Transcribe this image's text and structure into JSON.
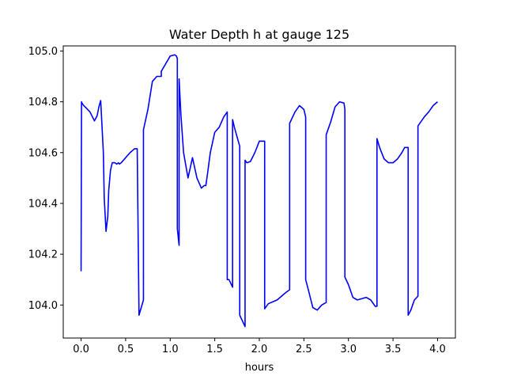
{
  "chart_data": {
    "type": "line",
    "title": "Water Depth h at gauge 125",
    "xlabel": "hours",
    "ylabel": "",
    "xlim": [
      -0.2,
      4.2
    ],
    "ylim": [
      103.87,
      105.02
    ],
    "xticks": [
      0.0,
      0.5,
      1.0,
      1.5,
      2.0,
      2.5,
      3.0,
      3.5,
      4.0
    ],
    "xtick_labels": [
      "0.0",
      "0.5",
      "1.0",
      "1.5",
      "2.0",
      "2.5",
      "3.0",
      "3.5",
      "4.0"
    ],
    "yticks": [
      104.0,
      104.2,
      104.4,
      104.6,
      104.8,
      105.0
    ],
    "ytick_labels": [
      "104.0",
      "104.2",
      "104.4",
      "104.6",
      "104.8",
      "105.0"
    ],
    "grid": false,
    "line_color": "#0000ff",
    "series": [
      {
        "x": [
          0.0,
          0.0,
          0.005,
          0.01,
          0.03,
          0.06,
          0.1,
          0.15,
          0.18,
          0.2,
          0.22,
          0.25,
          0.26,
          0.28,
          0.3,
          0.31,
          0.33,
          0.35,
          0.38,
          0.4,
          0.42,
          0.43,
          0.45,
          0.5,
          0.55,
          0.6,
          0.63,
          0.65,
          0.65,
          0.7,
          0.7,
          0.75,
          0.8,
          0.85,
          0.9,
          0.9,
          0.95,
          1.0,
          1.05,
          1.07,
          1.08,
          1.08,
          1.1,
          1.1,
          1.12,
          1.15,
          1.2,
          1.25,
          1.3,
          1.35,
          1.38,
          1.4,
          1.42,
          1.45,
          1.5,
          1.55,
          1.6,
          1.64,
          1.64,
          1.66,
          1.7,
          1.7,
          1.72,
          1.78,
          1.78,
          1.84,
          1.84,
          1.86,
          1.9,
          1.95,
          2.0,
          2.06,
          2.06,
          2.1,
          2.2,
          2.3,
          2.34,
          2.34,
          2.4,
          2.45,
          2.5,
          2.52,
          2.52,
          2.55,
          2.6,
          2.65,
          2.7,
          2.75,
          2.75,
          2.8,
          2.85,
          2.9,
          2.95,
          2.96,
          2.96,
          3.0,
          3.05,
          3.1,
          3.15,
          3.2,
          3.25,
          3.3,
          3.32,
          3.32,
          3.35,
          3.4,
          3.45,
          3.5,
          3.55,
          3.6,
          3.63,
          3.67,
          3.67,
          3.7,
          3.74,
          3.78,
          3.78,
          3.85,
          3.9,
          3.95,
          4.0
        ],
        "y": [
          104.2,
          104.135,
          104.8,
          104.795,
          104.785,
          104.775,
          104.76,
          104.725,
          104.745,
          104.78,
          104.805,
          104.6,
          104.42,
          104.29,
          104.35,
          104.45,
          104.53,
          104.56,
          104.56,
          104.555,
          104.56,
          104.555,
          104.56,
          104.58,
          104.6,
          104.615,
          104.615,
          103.96,
          103.96,
          104.02,
          104.69,
          104.77,
          104.88,
          104.9,
          104.9,
          104.92,
          104.95,
          104.98,
          104.985,
          104.98,
          104.97,
          104.3,
          104.235,
          104.89,
          104.75,
          104.6,
          104.5,
          104.58,
          104.5,
          104.46,
          104.47,
          104.47,
          104.52,
          104.6,
          104.68,
          104.7,
          104.74,
          104.76,
          104.1,
          104.1,
          104.07,
          104.73,
          104.7,
          104.625,
          103.96,
          103.915,
          104.57,
          104.56,
          104.565,
          104.6,
          104.645,
          104.645,
          103.985,
          104.005,
          104.02,
          104.05,
          104.06,
          104.715,
          104.76,
          104.785,
          104.77,
          104.74,
          104.1,
          104.06,
          103.99,
          103.98,
          104.0,
          104.01,
          104.67,
          104.72,
          104.78,
          104.8,
          104.795,
          104.77,
          104.11,
          104.08,
          104.03,
          104.02,
          104.025,
          104.03,
          104.02,
          103.995,
          103.995,
          104.655,
          104.62,
          104.575,
          104.56,
          104.56,
          104.575,
          104.6,
          104.62,
          104.62,
          103.96,
          103.98,
          104.02,
          104.035,
          104.705,
          104.74,
          104.76,
          104.785,
          104.8
        ]
      }
    ]
  }
}
